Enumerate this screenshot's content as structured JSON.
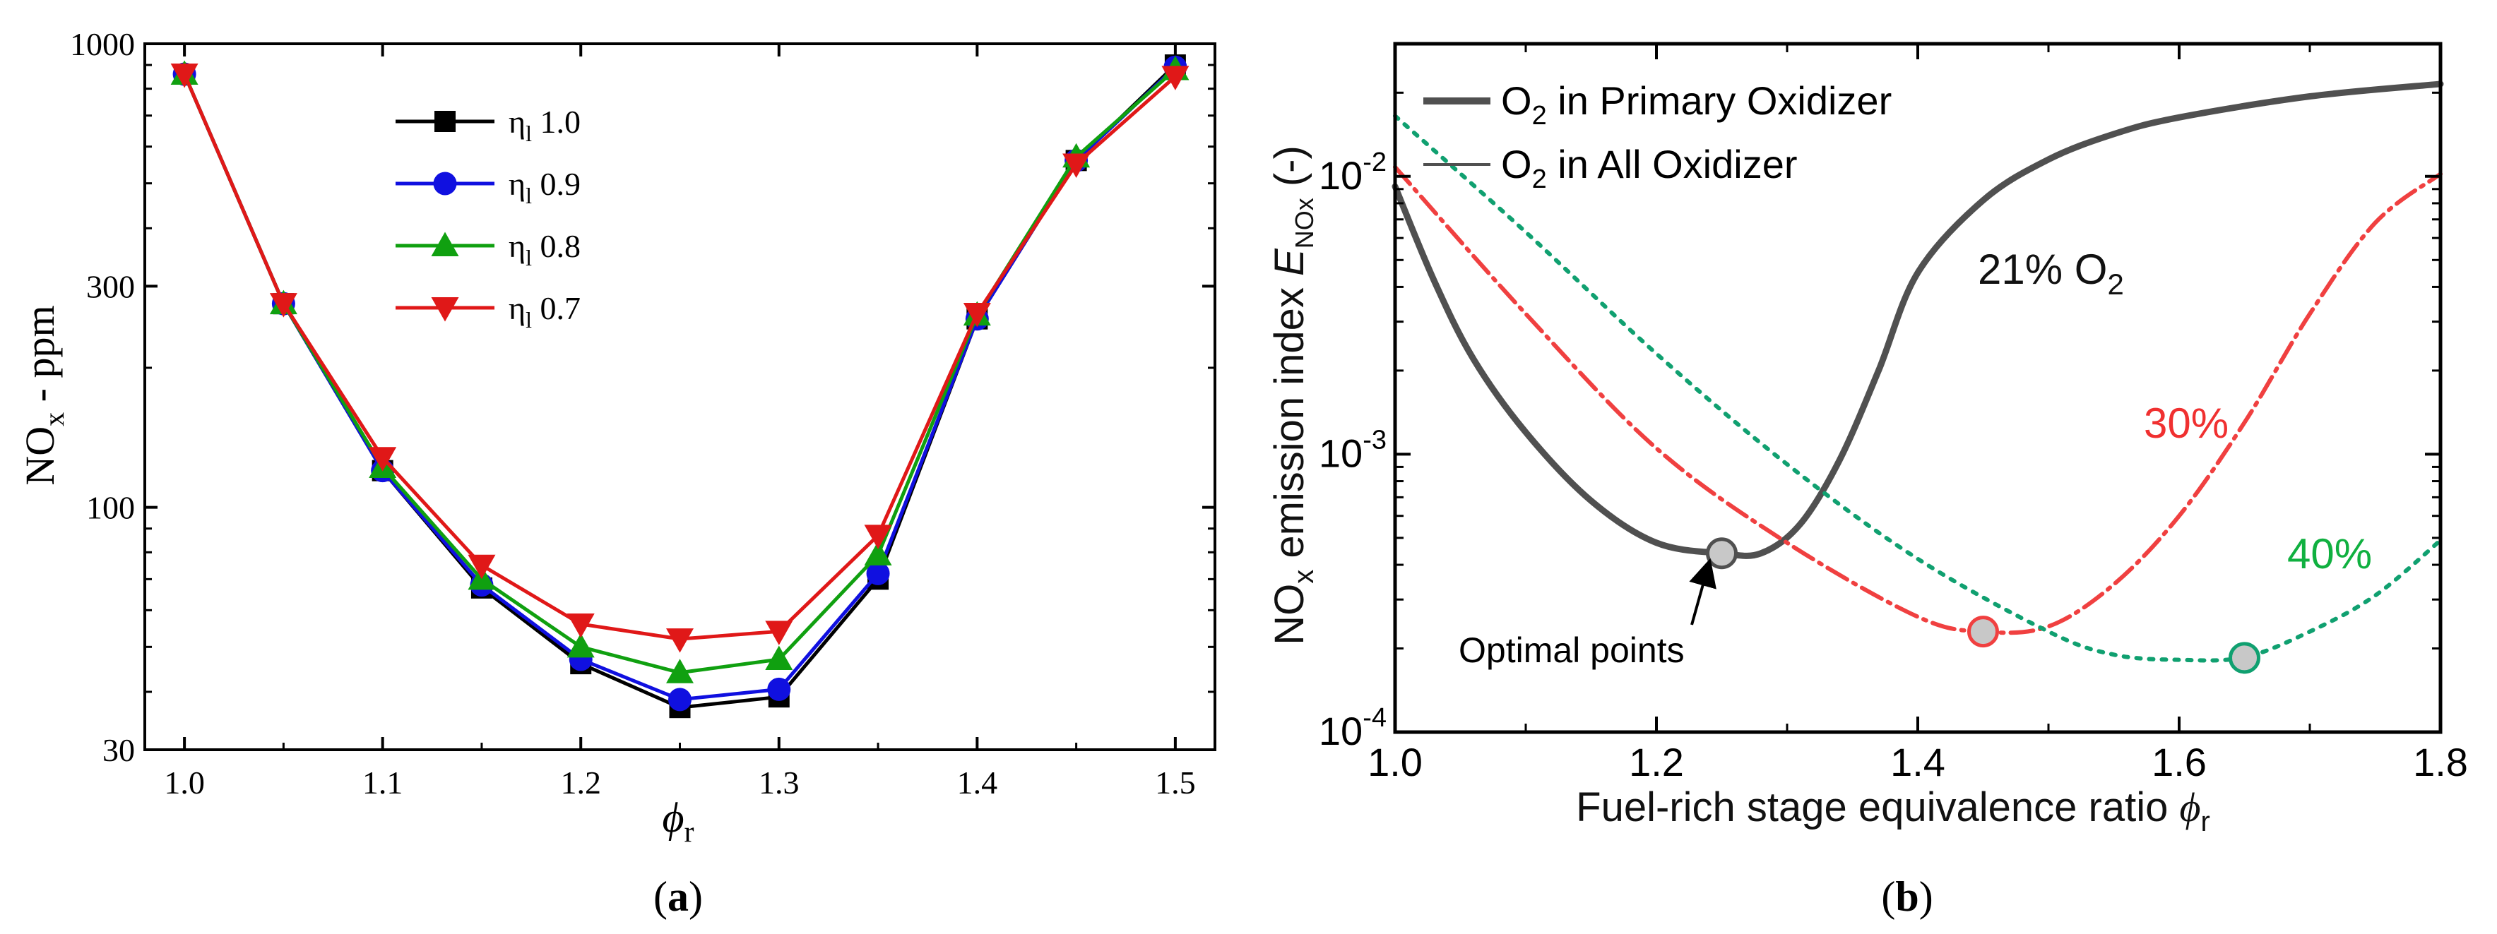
{
  "chart_data": [
    {
      "type": "line",
      "panel_label": "(a)",
      "x_scale": "linear",
      "y_scale": "log",
      "xlim": [
        0.98,
        1.52
      ],
      "ylim": [
        30,
        1000
      ],
      "xticks": [
        1.0,
        1.1,
        1.2,
        1.3,
        1.4,
        1.5
      ],
      "xtick_labels": [
        "1.0",
        "1.1",
        "1.2",
        "1.3",
        "1.4",
        "1.5"
      ],
      "yticks": [
        30,
        100,
        300,
        1000
      ],
      "ytick_labels": [
        "30",
        "100",
        "300",
        "1000"
      ],
      "xlabel": "ϕ",
      "xlabel_sub": "r",
      "ylabel_prefix": "NO",
      "ylabel_sub": "x",
      "ylabel_suffix": " - ppm",
      "legend_position": "upper-left",
      "x": [
        1.0,
        1.05,
        1.1,
        1.15,
        1.2,
        1.25,
        1.3,
        1.35,
        1.4,
        1.45,
        1.5
      ],
      "series": [
        {
          "name": "ηl 1.0",
          "label_greek": "η",
          "label_sub": "l",
          "label_val": "1.0",
          "color": "#000000",
          "marker": "square",
          "values": [
            860,
            275,
            120,
            67,
            46,
            37,
            39,
            70,
            255,
            560,
            900
          ]
        },
        {
          "name": "ηl 0.9",
          "label_greek": "η",
          "label_sub": "l",
          "label_val": "0.9",
          "color": "#1010e0",
          "marker": "circle",
          "values": [
            860,
            275,
            120,
            68,
            47,
            38.5,
            40.5,
            72,
            255,
            560,
            890
          ]
        },
        {
          "name": "ηl 0.8",
          "label_greek": "η",
          "label_sub": "l",
          "label_val": "0.8",
          "color": "#10a010",
          "marker": "triangle-up",
          "values": [
            860,
            275,
            122,
            70,
            50,
            44,
            47,
            79,
            260,
            570,
            880
          ]
        },
        {
          "name": "ηl 0.7",
          "label_greek": "η",
          "label_sub": "l",
          "label_val": "0.7",
          "color": "#e01818",
          "marker": "triangle-down",
          "values": [
            860,
            275,
            128,
            75,
            56,
            52,
            54,
            87,
            262,
            550,
            850
          ]
        }
      ]
    },
    {
      "type": "line",
      "panel_label": "(b)",
      "x_scale": "linear",
      "y_scale": "log",
      "xlim": [
        1.0,
        1.8
      ],
      "ylim": [
        0.0001,
        0.03
      ],
      "xticks": [
        1.0,
        1.2,
        1.4,
        1.6,
        1.8
      ],
      "xtick_labels": [
        "1.0",
        "1.2",
        "1.4",
        "1.6",
        "1.8"
      ],
      "yticks": [
        0.0001,
        0.001,
        0.01
      ],
      "ytick_bases": [
        "10",
        "10",
        "10"
      ],
      "ytick_exponents": [
        "-4",
        "-3",
        "-2"
      ],
      "xlabel": "Fuel-rich stage equivalence ratio ",
      "xlabel_symbol": "ϕ",
      "xlabel_sub": "r",
      "ylabel_prefix": "NO",
      "ylabel_sub1": "x",
      "ylabel_mid": " emission index ",
      "ylabel_E": "E",
      "ylabel_sub2": "NOx",
      "ylabel_suffix": " (-)",
      "legend": [
        {
          "prefix": "O",
          "sub": "2",
          "text": " in Primary Oxidizer",
          "style": "thick",
          "color": "#505050"
        },
        {
          "prefix": "O",
          "sub": "2",
          "text": " in All Oxidizer",
          "style": "thin",
          "color": "#505050"
        }
      ],
      "series": [
        {
          "name": "21% O2",
          "color": "#505050",
          "dash": "solid",
          "x": [
            1.0,
            1.03,
            1.06,
            1.1,
            1.15,
            1.2,
            1.25,
            1.28,
            1.31,
            1.34,
            1.37,
            1.4,
            1.45,
            1.5,
            1.55,
            1.6,
            1.7,
            1.8
          ],
          "y": [
            0.0092,
            0.0042,
            0.0022,
            0.0012,
            0.00068,
            0.00048,
            0.00044,
            0.00044,
            0.00056,
            0.00095,
            0.002,
            0.0045,
            0.0082,
            0.0115,
            0.0142,
            0.0163,
            0.0194,
            0.0215
          ]
        },
        {
          "name": "30%",
          "color": "#f04040",
          "dash": "longdash",
          "x": [
            1.0,
            1.1,
            1.2,
            1.3,
            1.4,
            1.45,
            1.5,
            1.55,
            1.6,
            1.65,
            1.7,
            1.75,
            1.8
          ],
          "y": [
            0.0108,
            0.0032,
            0.00105,
            0.00048,
            0.00026,
            0.00023,
            0.00024,
            0.00034,
            0.0006,
            0.0013,
            0.0032,
            0.0068,
            0.0102
          ]
        },
        {
          "name": "40%",
          "color": "#10a070",
          "dash": "dotted",
          "x": [
            1.0,
            1.1,
            1.2,
            1.3,
            1.4,
            1.5,
            1.55,
            1.6,
            1.65,
            1.7,
            1.75,
            1.8
          ],
          "y": [
            0.0165,
            0.0063,
            0.0023,
            0.00092,
            0.00042,
            0.00023,
            0.00019,
            0.000182,
            0.000186,
            0.00023,
            0.00031,
            0.00049
          ]
        }
      ],
      "optimal_points": [
        {
          "x": 1.25,
          "y": 0.00044
        },
        {
          "x": 1.45,
          "y": 0.00023
        },
        {
          "x": 1.65,
          "y": 0.000185
        }
      ],
      "annotations": {
        "label_21_num": "21% O",
        "label_21_sub": "2",
        "label_30": "30%",
        "label_40": "40%",
        "optimal": "Optimal points"
      }
    }
  ]
}
